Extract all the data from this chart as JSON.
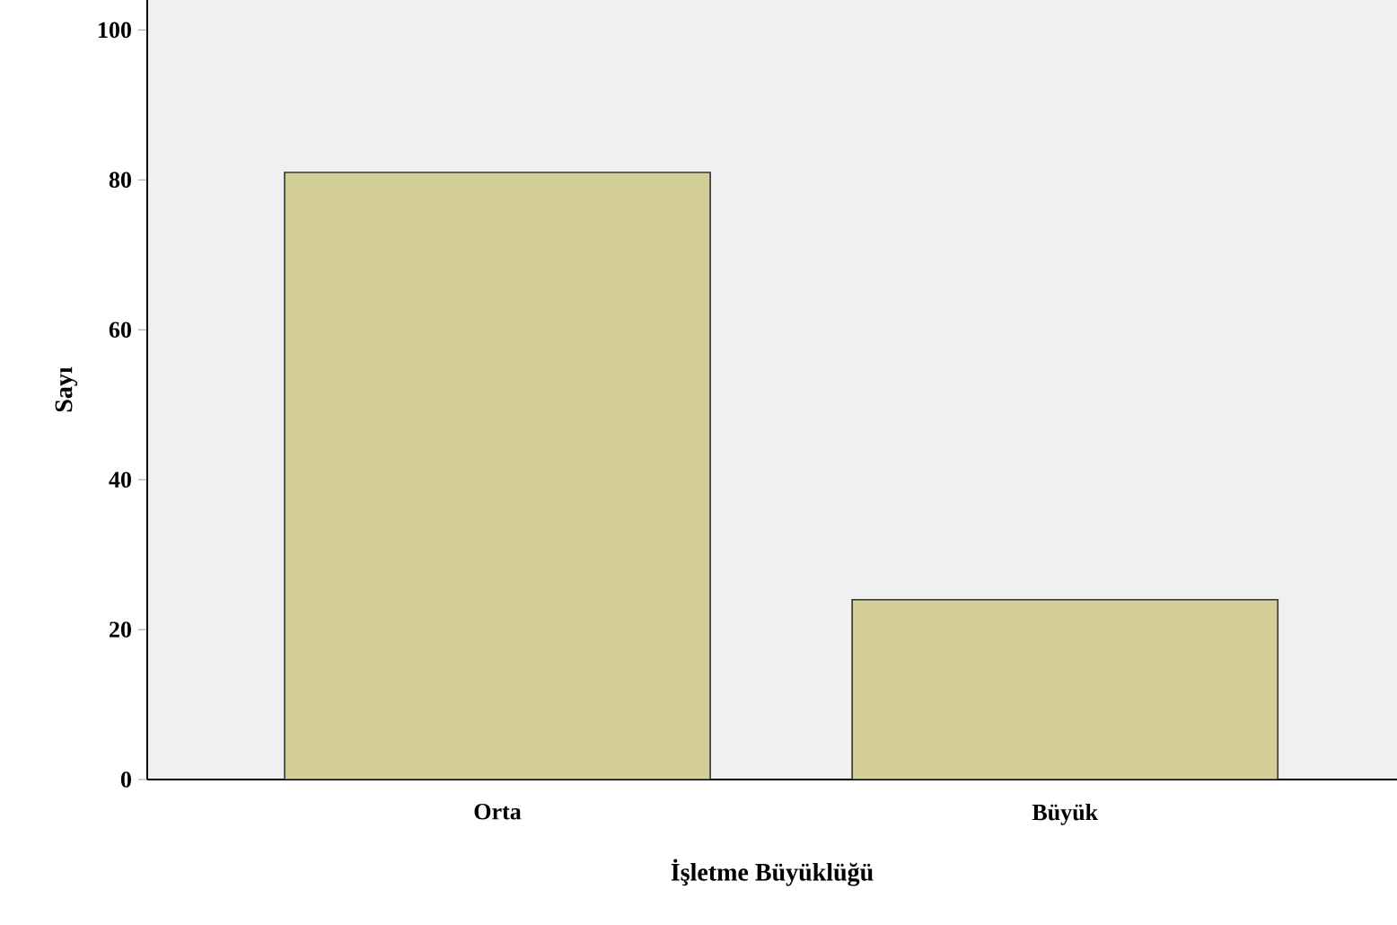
{
  "chart_data": {
    "type": "bar",
    "xlabel": "İşletme Büyüklüğü",
    "ylabel": "Sayı",
    "categories": [
      "Orta",
      "Büyük"
    ],
    "values": [
      81,
      24
    ],
    "color": "#d3ce97",
    "ylim": [
      0,
      104
    ],
    "yticks": [
      0,
      20,
      40,
      60,
      80,
      100
    ],
    "grid": false
  }
}
